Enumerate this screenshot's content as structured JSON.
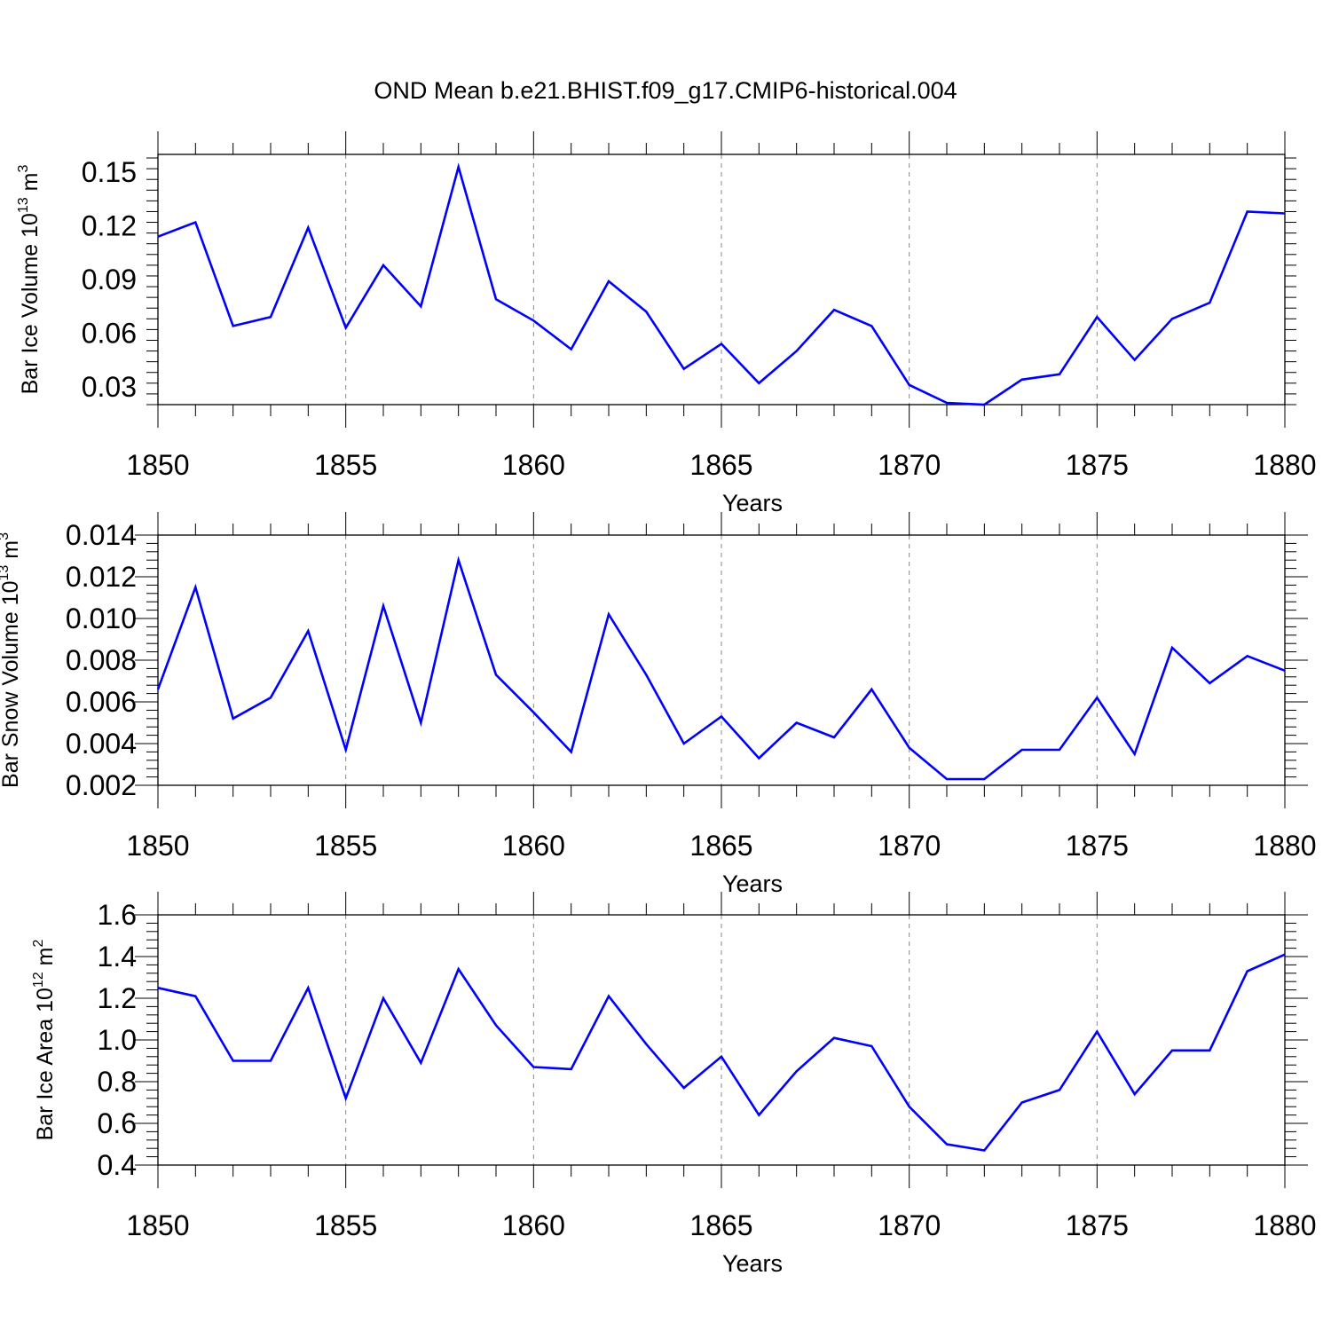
{
  "page": {
    "title": "OND Mean b.e21.BHIST.f09_g17.CMIP6-historical.004"
  },
  "chart_data": [
    {
      "type": "line",
      "ylabel": {
        "main": "Bar Ice Volume 10",
        "exp": "13",
        "unit": " m",
        "unit_exp": "3"
      },
      "xlabel": "Years",
      "xlim": [
        1850,
        1880
      ],
      "ylim": [
        0.02,
        0.16
      ],
      "yticks": [
        0.03,
        0.06,
        0.09,
        0.12,
        0.15
      ],
      "yticklabels": [
        "0.03",
        "0.06",
        "0.09",
        "0.12",
        "0.15"
      ],
      "xticks": [
        1850,
        1855,
        1860,
        1865,
        1870,
        1875,
        1880
      ],
      "xticklabels": [
        "1850",
        "1855",
        "1860",
        "1865",
        "1870",
        "1875",
        "1880"
      ],
      "grid": "vertical dashed at labeled x ticks",
      "line_color": "#0000ff",
      "x": [
        1850,
        1851,
        1852,
        1853,
        1854,
        1855,
        1856,
        1857,
        1858,
        1859,
        1860,
        1861,
        1862,
        1863,
        1864,
        1865,
        1866,
        1867,
        1868,
        1869,
        1870,
        1871,
        1872,
        1873,
        1874,
        1875,
        1876,
        1877,
        1878,
        1879,
        1880
      ],
      "y": [
        0.114,
        0.122,
        0.064,
        0.069,
        0.119,
        0.063,
        0.098,
        0.075,
        0.153,
        0.079,
        0.067,
        0.051,
        0.089,
        0.072,
        0.04,
        0.054,
        0.032,
        0.05,
        0.073,
        0.064,
        0.031,
        0.021,
        0.02,
        0.034,
        0.037,
        0.069,
        0.045,
        0.068,
        0.077,
        0.128,
        0.127
      ]
    },
    {
      "type": "line",
      "ylabel": {
        "main": "Bar Snow Volume 10",
        "exp": "13",
        "unit": " m",
        "unit_exp": "3"
      },
      "xlabel": "Years",
      "xlim": [
        1850,
        1880
      ],
      "ylim": [
        0.002,
        0.014
      ],
      "yticks": [
        0.002,
        0.004,
        0.006,
        0.008,
        0.01,
        0.012,
        0.014
      ],
      "yticklabels": [
        "0.002",
        "0.004",
        "0.006",
        "0.008",
        "0.010",
        "0.012",
        "0.014"
      ],
      "xticks": [
        1850,
        1855,
        1860,
        1865,
        1870,
        1875,
        1880
      ],
      "xticklabels": [
        "1850",
        "1855",
        "1860",
        "1865",
        "1870",
        "1875",
        "1880"
      ],
      "grid": "vertical dashed at labeled x ticks",
      "line_color": "#0000ff",
      "x": [
        1850,
        1851,
        1852,
        1853,
        1854,
        1855,
        1856,
        1857,
        1858,
        1859,
        1860,
        1861,
        1862,
        1863,
        1864,
        1865,
        1866,
        1867,
        1868,
        1869,
        1870,
        1871,
        1872,
        1873,
        1874,
        1875,
        1876,
        1877,
        1878,
        1879,
        1880
      ],
      "y": [
        0.0066,
        0.0115,
        0.0052,
        0.0062,
        0.0094,
        0.0037,
        0.0106,
        0.005,
        0.0128,
        0.0073,
        0.0055,
        0.0036,
        0.0102,
        0.0073,
        0.004,
        0.0053,
        0.0033,
        0.005,
        0.0043,
        0.0066,
        0.0038,
        0.0023,
        0.0023,
        0.0037,
        0.0037,
        0.0062,
        0.0035,
        0.0086,
        0.0069,
        0.0082,
        0.0075
      ]
    },
    {
      "type": "line",
      "ylabel": {
        "main": "Bar Ice Area 10",
        "exp": "12",
        "unit": " m",
        "unit_exp": "2"
      },
      "xlabel": "Years",
      "xlim": [
        1850,
        1880
      ],
      "ylim": [
        0.4,
        1.6
      ],
      "yticks": [
        0.4,
        0.6,
        0.8,
        1.0,
        1.2,
        1.4,
        1.6
      ],
      "yticklabels": [
        "0.4",
        "0.6",
        "0.8",
        "1.0",
        "1.2",
        "1.4",
        "1.6"
      ],
      "xticks": [
        1850,
        1855,
        1860,
        1865,
        1870,
        1875,
        1880
      ],
      "xticklabels": [
        "1850",
        "1855",
        "1860",
        "1865",
        "1870",
        "1875",
        "1880"
      ],
      "grid": "vertical dashed at labeled x ticks",
      "line_color": "#0000ff",
      "x": [
        1850,
        1851,
        1852,
        1853,
        1854,
        1855,
        1856,
        1857,
        1858,
        1859,
        1860,
        1861,
        1862,
        1863,
        1864,
        1865,
        1866,
        1867,
        1868,
        1869,
        1870,
        1871,
        1872,
        1873,
        1874,
        1875,
        1876,
        1877,
        1878,
        1879,
        1880
      ],
      "y": [
        1.25,
        1.21,
        0.9,
        0.9,
        1.25,
        0.72,
        1.2,
        0.89,
        1.34,
        1.07,
        0.87,
        0.86,
        1.21,
        0.98,
        0.77,
        0.92,
        0.64,
        0.85,
        1.01,
        0.97,
        0.68,
        0.5,
        0.47,
        0.7,
        0.76,
        1.04,
        0.74,
        0.95,
        0.95,
        1.33,
        1.41
      ]
    }
  ]
}
